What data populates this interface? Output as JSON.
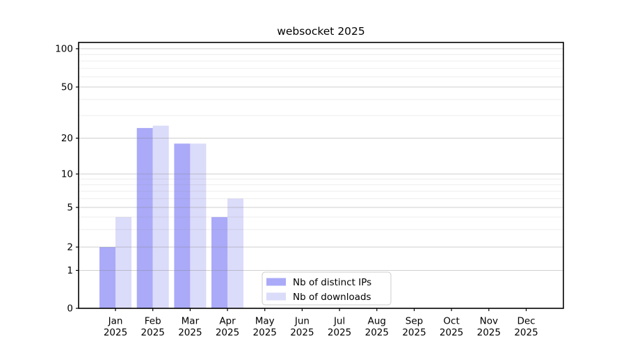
{
  "chart_data": {
    "type": "bar",
    "title": "websocket 2025",
    "xlabel": "",
    "ylabel": "",
    "year_label": "2025",
    "categories": [
      "Jan",
      "Feb",
      "Mar",
      "Apr",
      "May",
      "Jun",
      "Jul",
      "Aug",
      "Sep",
      "Oct",
      "Nov",
      "Dec"
    ],
    "series": [
      {
        "name": "Nb of distinct IPs",
        "color": "#aaaaf8",
        "values": [
          2,
          24,
          18,
          4,
          0,
          0,
          0,
          0,
          0,
          0,
          0,
          0
        ]
      },
      {
        "name": "Nb of downloads",
        "color": "#dbdbfa",
        "values": [
          4,
          25,
          18,
          6,
          0,
          0,
          0,
          0,
          0,
          0,
          0,
          0
        ]
      }
    ],
    "yticks": [
      0,
      1,
      2,
      5,
      10,
      20,
      50,
      100
    ],
    "yticks_minor": [
      3,
      4,
      6,
      7,
      8,
      9,
      30,
      40,
      60,
      70,
      80,
      90
    ],
    "yscale": "symlog",
    "ylim": [
      0,
      112
    ],
    "grid": "both, horizontal only, drawn over bars",
    "legend_position": "lower center"
  }
}
